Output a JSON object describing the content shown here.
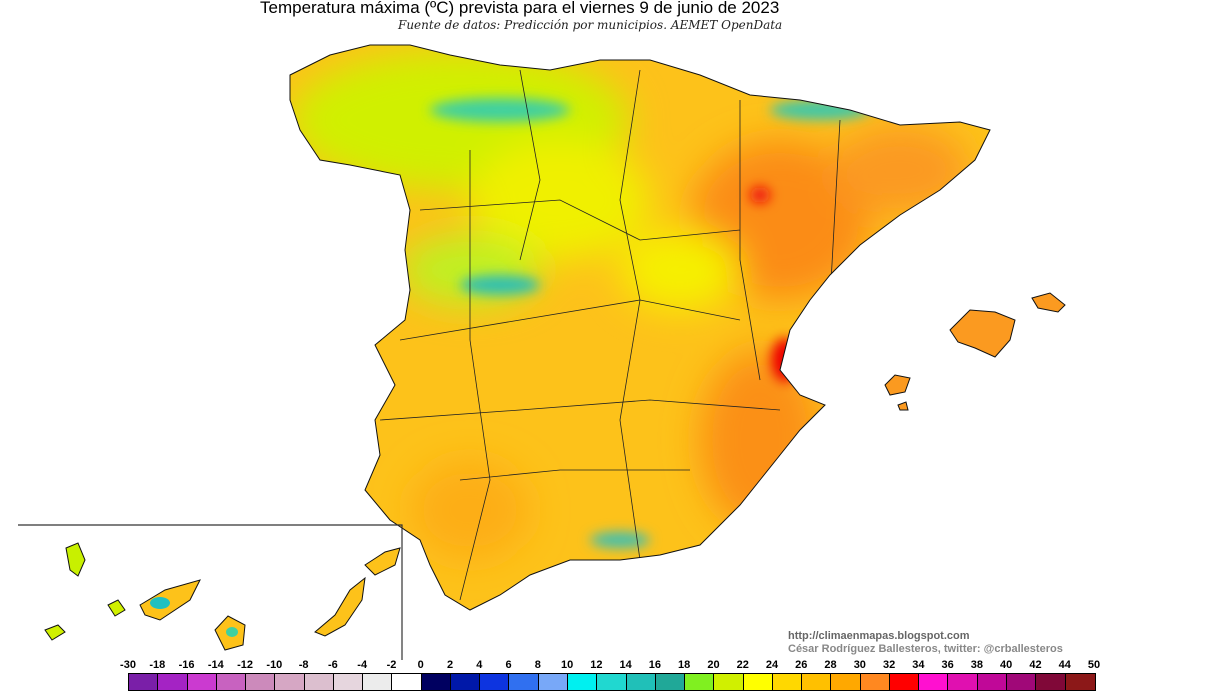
{
  "header": {
    "title": "Temperatura máxima (ºC) prevista para el viernes 9 de junio de 2023",
    "subtitle": "Fuente de datos: Predicción por municipios. AEMET OpenData"
  },
  "credits": {
    "url": "http://climaenmapas.blogspot.com",
    "author": "César Rodríguez Ballesteros, twitter: @crballesteros"
  },
  "map": {
    "regions": [
      "Península Ibérica",
      "Islas Baleares",
      "Islas Canarias (recuadro)"
    ],
    "dominant_colors": {
      "north": "#c8f000",
      "center": "#fdd000",
      "east": "#fb8c18",
      "hot_spots": "#ee0000",
      "mountains": "#20c0b0"
    }
  },
  "legend": {
    "unit": "ºC",
    "labels": [
      "-30",
      "-18",
      "-16",
      "-14",
      "-12",
      "-10",
      "-8",
      "-6",
      "-4",
      "-2",
      "0",
      "2",
      "4",
      "6",
      "8",
      "10",
      "12",
      "14",
      "16",
      "18",
      "20",
      "22",
      "24",
      "26",
      "28",
      "30",
      "32",
      "34",
      "36",
      "38",
      "40",
      "42",
      "44",
      "50"
    ],
    "colors": [
      "#7a1fa8",
      "#a423c4",
      "#cb3ad0",
      "#c862c0",
      "#cc8abb",
      "#d6a7c4",
      "#dcbfcf",
      "#e6d6de",
      "#ececec",
      "#ffffff",
      "#000060",
      "#0018a8",
      "#0d34e0",
      "#3070f0",
      "#78a8f8",
      "#00f0f0",
      "#20d8d0",
      "#20c0b8",
      "#20a898",
      "#80f020",
      "#d0f000",
      "#ffff00",
      "#ffd800",
      "#ffc000",
      "#ffa800",
      "#ff8820",
      "#ff0000",
      "#ff10d0",
      "#e010b0",
      "#c00898",
      "#a00878",
      "#800838",
      "#8c1818"
    ]
  }
}
